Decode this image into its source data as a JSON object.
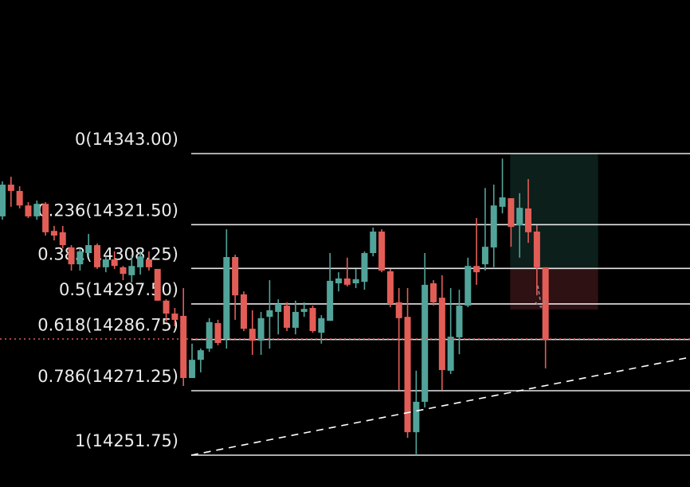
{
  "chart_data": {
    "type": "candlestick",
    "title": "",
    "xlabel": "",
    "ylabel": "",
    "ylim": [
      14251.75,
      14343.0
    ],
    "grid": false,
    "colors": {
      "up": "#52a49a",
      "down": "#e35d57",
      "fib_line": "#e6e6e6",
      "current_price": "#e35d57",
      "trendline": "#ffffff",
      "profit_zone": "#0c1f1b",
      "loss_zone": "#2e1113",
      "arrow": "#8a8f96"
    },
    "fib_levels": [
      {
        "ratio": "0",
        "price": 14343.0,
        "label": "0(14343.00)"
      },
      {
        "ratio": "0.236",
        "price": 14321.5,
        "label": "0.236(14321.50)"
      },
      {
        "ratio": "0.382",
        "price": 14308.25,
        "label": "0.382(14308.25)"
      },
      {
        "ratio": "0.5",
        "price": 14297.5,
        "label": "0.5(14297.50)"
      },
      {
        "ratio": "0.618",
        "price": 14286.75,
        "label": "0.618(14286.75)"
      },
      {
        "ratio": "0.786",
        "price": 14271.25,
        "label": "0.786(14271.25)"
      },
      {
        "ratio": "1",
        "price": 14251.75,
        "label": "1(14251.75)"
      }
    ],
    "current_price": 14286.9,
    "trendline": {
      "start": {
        "bar": 21.9,
        "price": 14251.75
      },
      "end": {
        "bar": 79.8,
        "price": 14281.4
      }
    },
    "position": {
      "start_bar": 58.9,
      "end_bar": 69.1,
      "target": 14343.0,
      "entry": 14308.25,
      "stop": 14295.8
    },
    "candles": [
      [
        14324.0,
        14334.6,
        14323.0,
        14333.6
      ],
      [
        14333.6,
        14336.0,
        14326.9,
        14331.7
      ],
      [
        14331.7,
        14333.1,
        14326.4,
        14327.3
      ],
      [
        14327.3,
        14328.3,
        14323.5,
        14324.0
      ],
      [
        14324.0,
        14328.8,
        14323.0,
        14327.8
      ],
      [
        14327.8,
        14328.3,
        14318.2,
        14319.2
      ],
      [
        14319.6,
        14321.1,
        14316.75,
        14318.2
      ],
      [
        14319.2,
        14321.1,
        14314.3,
        14315.3
      ],
      [
        14314.6,
        14315.3,
        14307.6,
        14309.5
      ],
      [
        14309.5,
        14314.3,
        14307.6,
        14313.4
      ],
      [
        14312.9,
        14318.7,
        14311.9,
        14315.3
      ],
      [
        14315.3,
        14315.8,
        14308.1,
        14308.6
      ],
      [
        14308.6,
        14311.9,
        14307.1,
        14311.0
      ],
      [
        14311.0,
        14313.4,
        14308.1,
        14309.0
      ],
      [
        14308.6,
        14309.0,
        14304.7,
        14306.6
      ],
      [
        14306.2,
        14312.4,
        14304.0,
        14309.0
      ],
      [
        14308.6,
        14313.4,
        14306.4,
        14311.9
      ],
      [
        14311.0,
        14313.4,
        14307.6,
        14308.6
      ],
      [
        14308.1,
        14308.1,
        14298.5,
        14298.5
      ],
      [
        14298.5,
        14298.9,
        14292.2,
        14294.6
      ],
      [
        14294.6,
        14296.3,
        14290.75,
        14292.7
      ],
      [
        14293.9,
        14302.3,
        14272.7,
        14275.1
      ],
      [
        14275.1,
        14285.5,
        14275.1,
        14280.6
      ],
      [
        14280.6,
        14284.0,
        14276.8,
        14283.5
      ],
      [
        14284.0,
        14293.2,
        14283.0,
        14292.0
      ],
      [
        14291.7,
        14292.7,
        14285.0,
        14285.7
      ],
      [
        14286.9,
        14320.1,
        14284.0,
        14311.7
      ],
      [
        14311.7,
        14312.4,
        14292.7,
        14300.1
      ],
      [
        14300.4,
        14301.3,
        14289.3,
        14290.0
      ],
      [
        14290.0,
        14295.6,
        14282.1,
        14286.4
      ],
      [
        14286.4,
        14295.1,
        14282.1,
        14293.2
      ],
      [
        14293.6,
        14304.7,
        14284.0,
        14295.6
      ],
      [
        14295.1,
        14298.9,
        14288.3,
        14297.5
      ],
      [
        14297.0,
        14298.0,
        14289.3,
        14290.3
      ],
      [
        14290.3,
        14298.5,
        14288.3,
        14295.1
      ],
      [
        14295.1,
        14298.0,
        14293.6,
        14296.0
      ],
      [
        14296.3,
        14297.0,
        14288.8,
        14289.3
      ],
      [
        14288.8,
        14294.1,
        14285.5,
        14293.2
      ],
      [
        14292.4,
        14312.9,
        14292.4,
        14304.5
      ],
      [
        14303.75,
        14307.1,
        14301.3,
        14305.2
      ],
      [
        14305.2,
        14311.5,
        14302.8,
        14303.3
      ],
      [
        14303.75,
        14308.1,
        14302.3,
        14305.0
      ],
      [
        14304.2,
        14313.4,
        14301.8,
        14312.9
      ],
      [
        14312.9,
        14320.6,
        14311.9,
        14319.4
      ],
      [
        14319.4,
        14320.1,
        14307.1,
        14307.6
      ],
      [
        14307.4,
        14308.1,
        14296.5,
        14297.5
      ],
      [
        14298.0,
        14302.3,
        14271.5,
        14293.2
      ],
      [
        14293.6,
        14302.3,
        14257.0,
        14258.7
      ],
      [
        14258.7,
        14277.3,
        14251.75,
        14267.9
      ],
      [
        14267.9,
        14312.9,
        14266.2,
        14303.3
      ],
      [
        14303.75,
        14304.7,
        14297.0,
        14298.0
      ],
      [
        14299.4,
        14306.2,
        14271.5,
        14277.5
      ],
      [
        14277.3,
        14302.3,
        14276.3,
        14287.6
      ],
      [
        14287.4,
        14301.8,
        14282.3,
        14297.0
      ],
      [
        14297.0,
        14311.5,
        14296.5,
        14309.0
      ],
      [
        14309.0,
        14323.5,
        14303.3,
        14307.1
      ],
      [
        14309.5,
        14332.6,
        14307.6,
        14314.8
      ],
      [
        14314.6,
        14333.6,
        14308.6,
        14327.3
      ],
      [
        14326.9,
        14341.5,
        14324.9,
        14329.75
      ],
      [
        14329.5,
        14329.5,
        14314.8,
        14320.8
      ],
      [
        14321.3,
        14331.0,
        14311.5,
        14326.6
      ],
      [
        14326.4,
        14335.3,
        14316.0,
        14319.2
      ],
      [
        14319.4,
        14321.3,
        14300.1,
        14308.6
      ],
      [
        14308.6,
        14308.6,
        14278.0,
        14286.65
      ]
    ]
  }
}
